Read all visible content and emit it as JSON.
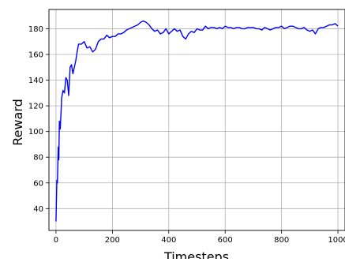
{
  "chart_data": {
    "type": "line",
    "title": "",
    "xlabel": "Timesteps",
    "ylabel": "Reward",
    "xlim": [
      -25,
      1025
    ],
    "ylim": [
      23,
      195
    ],
    "x_ticks": [
      0,
      200,
      400,
      600,
      800,
      1000
    ],
    "y_ticks": [
      40,
      60,
      80,
      100,
      120,
      140,
      160,
      180
    ],
    "x_tick_labels": [
      "0",
      "200",
      "400",
      "600",
      "800",
      "1000"
    ],
    "y_tick_labels": [
      "40",
      "60",
      "80",
      "100",
      "120",
      "140",
      "160",
      "180"
    ],
    "grid": true,
    "legend": "none",
    "series": [
      {
        "color": "#0000ff",
        "x": [
          0,
          3,
          5,
          8,
          10,
          12,
          15,
          18,
          20,
          25,
          30,
          35,
          40,
          45,
          50,
          55,
          60,
          65,
          70,
          75,
          80,
          90,
          100,
          110,
          120,
          130,
          140,
          150,
          160,
          170,
          180,
          190,
          200,
          210,
          220,
          230,
          240,
          250,
          260,
          270,
          280,
          290,
          300,
          310,
          320,
          330,
          340,
          350,
          360,
          370,
          380,
          390,
          400,
          410,
          420,
          430,
          440,
          450,
          460,
          470,
          480,
          490,
          500,
          510,
          520,
          530,
          540,
          550,
          560,
          570,
          580,
          590,
          600,
          610,
          620,
          630,
          640,
          650,
          660,
          670,
          680,
          690,
          700,
          710,
          720,
          730,
          740,
          750,
          760,
          770,
          780,
          790,
          800,
          810,
          820,
          830,
          840,
          850,
          860,
          870,
          880,
          890,
          900,
          910,
          920,
          930,
          940,
          950,
          960,
          970,
          980,
          990,
          1000
        ],
        "y": [
          30,
          62,
          60,
          88,
          78,
          108,
          102,
          115,
          126,
          132,
          130,
          142,
          140,
          128,
          150,
          152,
          145,
          150,
          155,
          162,
          168,
          168,
          170,
          165,
          166,
          162,
          164,
          170,
          172,
          172,
          175,
          173,
          174,
          174,
          176,
          176,
          177,
          179,
          180,
          181,
          182,
          183,
          185,
          186,
          185,
          183,
          180,
          178,
          179,
          176,
          177,
          180,
          176,
          178,
          180,
          178,
          179,
          174,
          172,
          176,
          178,
          177,
          180,
          179,
          179,
          182,
          180,
          181,
          181,
          180,
          181,
          180,
          182,
          181,
          181,
          180,
          181,
          181,
          180,
          180,
          181,
          181,
          181,
          180,
          180,
          179,
          181,
          180,
          179,
          180,
          181,
          181,
          182,
          180,
          181,
          182,
          182,
          181,
          180,
          180,
          181,
          179,
          178,
          179,
          176,
          180,
          181,
          181,
          182,
          183,
          183,
          184,
          182
        ]
      }
    ]
  }
}
